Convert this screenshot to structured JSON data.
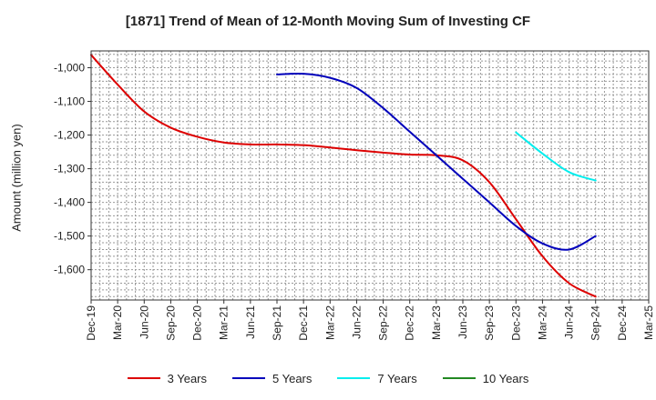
{
  "chart_data": {
    "type": "line",
    "title": "[1871]  Trend of Mean of 12-Month Moving Sum of Investing CF",
    "xlabel": "",
    "ylabel": "Amount (million yen)",
    "categories": [
      "Dec-19",
      "Mar-20",
      "Jun-20",
      "Sep-20",
      "Dec-20",
      "Mar-21",
      "Jun-21",
      "Sep-21",
      "Dec-21",
      "Mar-22",
      "Jun-22",
      "Sep-22",
      "Dec-22",
      "Mar-23",
      "Jun-23",
      "Sep-23",
      "Dec-23",
      "Mar-24",
      "Jun-24",
      "Sep-24",
      "Dec-24",
      "Mar-25"
    ],
    "ylim": [
      -1690,
      -950
    ],
    "yticks": [
      -1600,
      -1500,
      -1400,
      -1300,
      -1200,
      -1100,
      -1000
    ],
    "ytick_labels": [
      "-1,600",
      "-1,500",
      "-1,400",
      "-1,300",
      "-1,200",
      "-1,100",
      "-1,000"
    ],
    "grid": true,
    "legend_position": "bottom",
    "series": [
      {
        "name": "3 Years",
        "color": "#dd0000",
        "x": [
          0,
          1,
          2,
          3,
          4,
          5,
          6,
          7,
          8,
          9,
          10,
          11,
          12,
          13,
          14,
          15,
          16,
          17,
          18,
          19
        ],
        "values": [
          -962,
          -1050,
          -1130,
          -1178,
          -1205,
          -1222,
          -1228,
          -1228,
          -1230,
          -1237,
          -1245,
          -1252,
          -1258,
          -1260,
          -1275,
          -1340,
          -1450,
          -1560,
          -1640,
          -1680
        ]
      },
      {
        "name": "5 Years",
        "color": "#0000bb",
        "x": [
          7,
          8,
          9,
          10,
          11,
          12,
          13,
          14,
          15,
          16,
          17,
          18,
          19
        ],
        "values": [
          -1020,
          -1018,
          -1030,
          -1060,
          -1120,
          -1190,
          -1260,
          -1330,
          -1400,
          -1470,
          -1522,
          -1540,
          -1500
        ]
      },
      {
        "name": "7 Years",
        "color": "#00eeee",
        "x": [
          16,
          17,
          18,
          19
        ],
        "values": [
          -1192,
          -1255,
          -1310,
          -1335
        ]
      },
      {
        "name": "10 Years",
        "color": "#228822",
        "x": [],
        "values": []
      }
    ]
  }
}
